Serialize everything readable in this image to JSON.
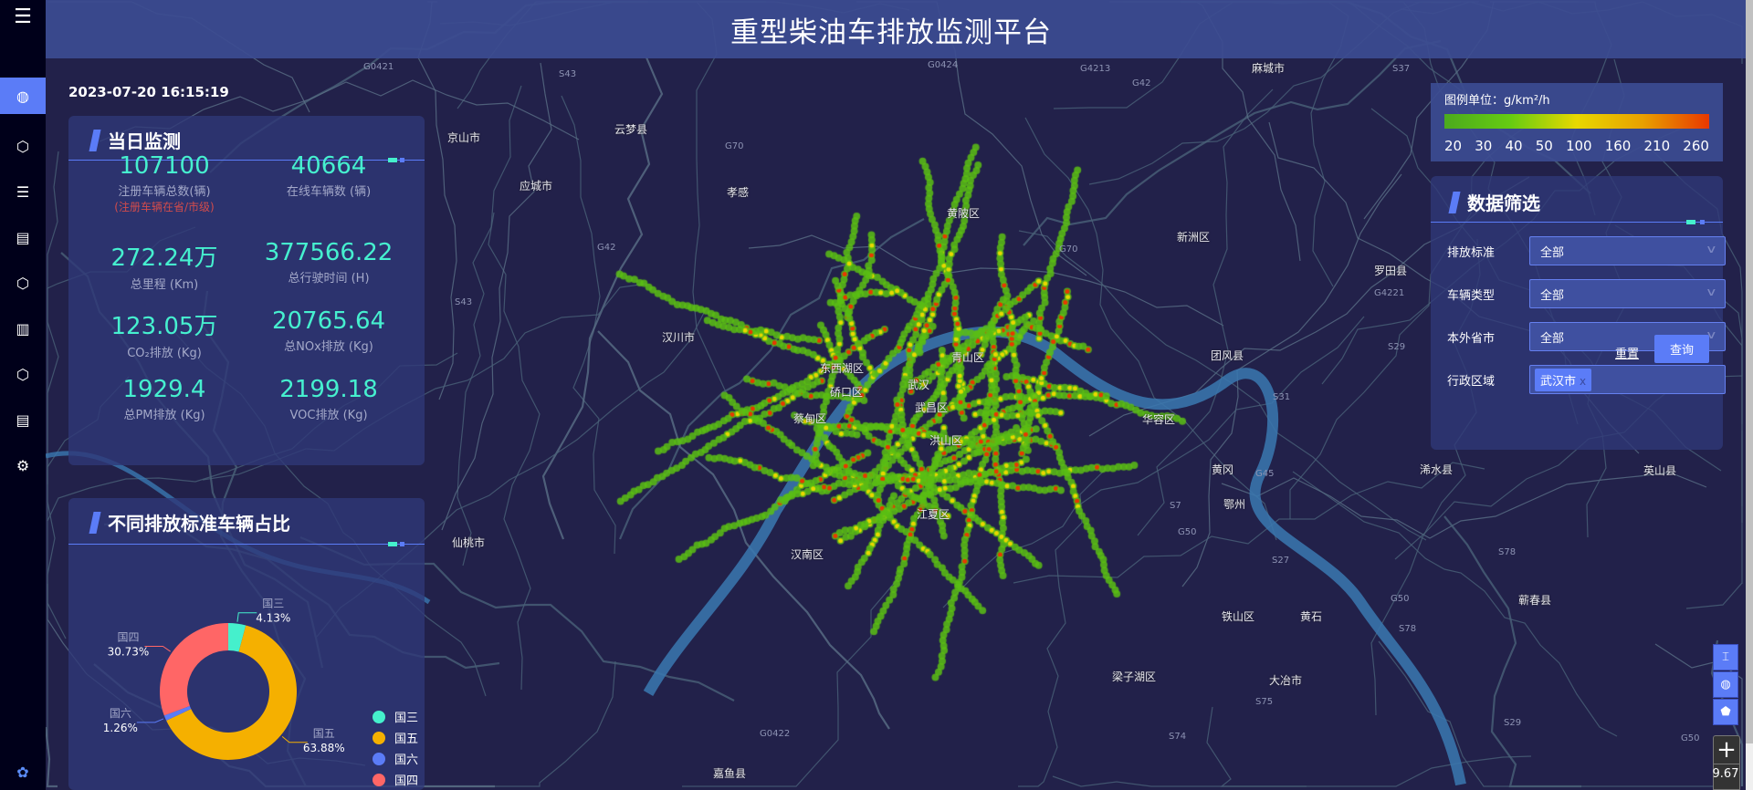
{
  "header": {
    "title": "重型柴油车排放监测平台"
  },
  "datetime": "2023-07-20 16:15:19",
  "sidebar": {
    "items": [
      {
        "icon": "menu-icon",
        "glyph": "☰"
      },
      {
        "icon": "globe-icon",
        "glyph": "◍",
        "active": true
      },
      {
        "icon": "shield-search-icon",
        "glyph": "⬡"
      },
      {
        "icon": "list-icon",
        "glyph": "☰"
      },
      {
        "icon": "document-list-icon",
        "glyph": "▤"
      },
      {
        "icon": "shield-search-icon",
        "glyph": "⬡"
      },
      {
        "icon": "bar-chart-icon",
        "glyph": "▥"
      },
      {
        "icon": "shield-search-icon",
        "glyph": "⬡"
      },
      {
        "icon": "document-list-icon",
        "glyph": "▤"
      },
      {
        "icon": "gear-icon",
        "glyph": "⚙"
      },
      {
        "icon": "settings-icon",
        "glyph": "✿"
      }
    ]
  },
  "daily": {
    "title": "当日监测",
    "stats": [
      {
        "value": "107100",
        "label": "注册车辆总数(辆)",
        "sub": "(注册车辆在省/市级)"
      },
      {
        "value": "40664",
        "label": "在线车辆数 (辆)"
      },
      {
        "value": "272.24万",
        "label": "总里程 (Km)"
      },
      {
        "value": "377566.22",
        "label": "总行驶时间 (H)"
      },
      {
        "value": "123.05万",
        "label": "CO₂排放 (Kg)"
      },
      {
        "value": "20765.64",
        "label": "总NOx排放 (Kg)"
      },
      {
        "value": "1929.4",
        "label": "总PM排放 (Kg)"
      },
      {
        "value": "2199.18",
        "label": "VOC排放 (Kg)"
      }
    ]
  },
  "ratio": {
    "title": "不同排放标准车辆占比"
  },
  "chart_data": {
    "type": "pie",
    "donut": true,
    "legend_position": "bottom-right",
    "slices": [
      {
        "name": "国三",
        "value": 4.13,
        "label": "4.13%",
        "color": "#45f0cc"
      },
      {
        "name": "国五",
        "value": 63.88,
        "label": "63.88%",
        "color": "#f5b000"
      },
      {
        "name": "国六",
        "value": 1.26,
        "label": "1.26%",
        "color": "#5b7cf7"
      },
      {
        "name": "国四",
        "value": 30.73,
        "label": "30.73%",
        "color": "#ff6666"
      }
    ]
  },
  "legend": {
    "title": "图例单位：g/km²/h",
    "ticks": [
      "20",
      "30",
      "40",
      "50",
      "100",
      "160",
      "210",
      "260"
    ],
    "colors": [
      "#4caa1e",
      "#66cc11",
      "#e8d800",
      "#e8a000",
      "#e83800"
    ]
  },
  "filter": {
    "title": "数据筛选",
    "rows": [
      {
        "label": "排放标准",
        "value": "全部"
      },
      {
        "label": "车辆类型",
        "value": "全部"
      },
      {
        "label": "本外省市",
        "value": "全部"
      },
      {
        "label": "行政区域",
        "tag": "武汉市",
        "remove": "x"
      }
    ],
    "reset": "重置",
    "query": "查询"
  },
  "map": {
    "zoom_in": "+",
    "zoom_level": "9.67",
    "tools": [
      {
        "icon": "height-icon",
        "glyph": "⌶"
      },
      {
        "icon": "globe-icon",
        "glyph": "◍"
      },
      {
        "icon": "pentagon-icon",
        "glyph": "⬟"
      }
    ],
    "places": [
      "云梦县",
      "应城市",
      "孝感",
      "汉川市",
      "黄陂区",
      "新洲区",
      "东西湖区",
      "硚口区",
      "武汉",
      "青山区",
      "蔡甸区",
      "武昌区",
      "洪山区",
      "团风县",
      "华容区",
      "黄冈",
      "鄂州",
      "浠水县",
      "汉南区",
      "江夏区",
      "仙桃市",
      "铁山区",
      "黄石",
      "蕲春县",
      "梁子湖区",
      "大冶市",
      "嘉鱼县",
      "麻城市",
      "京山市",
      "罗田县",
      "英山县"
    ],
    "roads": [
      "G0421",
      "S43",
      "G70",
      "G42",
      "G0424",
      "G4213",
      "G42",
      "S37",
      "S43",
      "G70",
      "G4221",
      "S29",
      "S31",
      "G45",
      "S7",
      "G50",
      "S27",
      "S78",
      "G50",
      "S78",
      "S75",
      "S29",
      "G0422",
      "S74",
      "G50"
    ]
  }
}
